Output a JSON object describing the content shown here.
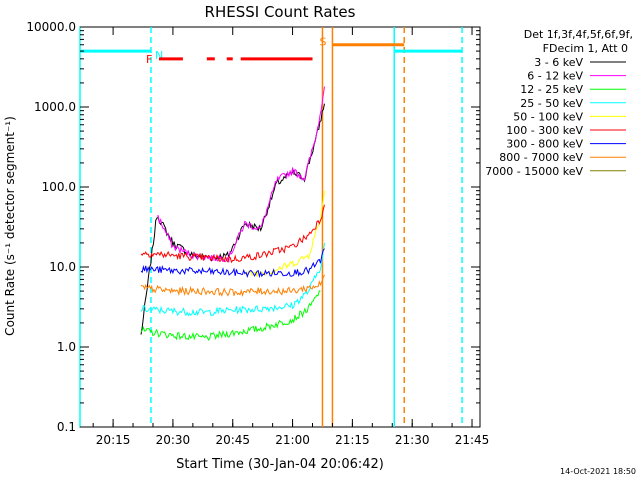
{
  "chart_data": {
    "type": "line",
    "title": "RHESSI Count Rates",
    "xlabel": "Start Time (30-Jan-04 20:06:42)",
    "ylabel": "Count Rate (s⁻¹ detector segment⁻¹)",
    "y_scale": "log",
    "ylim": [
      0.1,
      10000
    ],
    "xlim": [
      "20:06:42",
      "21:47:00"
    ],
    "x_ticks": [
      "20:15",
      "20:30",
      "20:45",
      "21:00",
      "21:15",
      "21:30",
      "21:45"
    ],
    "y_ticks": [
      "0.1",
      "1.0",
      "10.0",
      "100.0",
      "1000.0",
      "10000.0"
    ],
    "grid": false,
    "legend_position": "right",
    "legend_header": [
      "Det 1f,3f,4f,5f,6f,9f,",
      "FDecim 1, Att 0"
    ],
    "series": [
      {
        "name": "3 - 6 keV",
        "color": "#000000",
        "x": [
          "20:22",
          "20:26",
          "20:30",
          "20:35",
          "20:40",
          "20:44",
          "20:48",
          "20:52",
          "20:56",
          "21:00",
          "21:03",
          "21:06",
          "21:08"
        ],
        "y": [
          1.4,
          45,
          20,
          14,
          13,
          14,
          35,
          30,
          110,
          150,
          130,
          420,
          1100
        ]
      },
      {
        "name": "6 - 12 keV",
        "color": "#ff00ff",
        "x": [
          "20:26",
          "20:30",
          "20:35",
          "20:40",
          "20:44",
          "20:48",
          "20:52",
          "20:56",
          "21:00",
          "21:03",
          "21:06",
          "21:08"
        ],
        "y": [
          45,
          18,
          14,
          13,
          13,
          35,
          30,
          120,
          160,
          130,
          450,
          1800
        ]
      },
      {
        "name": "12 - 25 keV",
        "color": "#00ff00",
        "x": [
          "20:22",
          "20:30",
          "20:38",
          "20:45",
          "20:52",
          "21:00",
          "21:04",
          "21:07"
        ],
        "y": [
          1.6,
          1.4,
          1.3,
          1.5,
          1.7,
          2.2,
          3,
          5
        ]
      },
      {
        "name": "25 - 50 keV",
        "color": "#00ffff",
        "x": [
          "20:22",
          "20:30",
          "20:38",
          "20:45",
          "20:52",
          "21:00",
          "21:04",
          "21:07",
          "21:08"
        ],
        "y": [
          3,
          2.8,
          2.7,
          2.9,
          3,
          3.3,
          5,
          10,
          20
        ]
      },
      {
        "name": "50 - 100 keV",
        "color": "#ffff00",
        "x": [
          "20:48",
          "20:55",
          "21:00",
          "21:04",
          "21:07",
          "21:08"
        ],
        "y": [
          8,
          9,
          11,
          14,
          40,
          90
        ]
      },
      {
        "name": "100 - 300 keV",
        "color": "#ff0000",
        "x": [
          "20:22",
          "20:30",
          "20:38",
          "20:45",
          "20:52",
          "21:00",
          "21:04",
          "21:07",
          "21:08"
        ],
        "y": [
          15,
          14,
          13,
          12.5,
          14,
          18,
          25,
          40,
          60
        ]
      },
      {
        "name": "300 - 800 keV",
        "color": "#0000ff",
        "x": [
          "20:22",
          "20:30",
          "20:38",
          "20:45",
          "20:52",
          "21:00",
          "21:04",
          "21:07",
          "21:08"
        ],
        "y": [
          9.5,
          9,
          8.8,
          8.5,
          8.3,
          8.5,
          9,
          12,
          17
        ]
      },
      {
        "name": "800 - 7000 keV",
        "color": "#ff8000",
        "x": [
          "20:22",
          "20:30",
          "20:38",
          "20:45",
          "20:52",
          "21:00",
          "21:04",
          "21:07",
          "21:08"
        ],
        "y": [
          5.5,
          5,
          5,
          4.8,
          5,
          5,
          5.5,
          6,
          8
        ]
      },
      {
        "name": "7000 - 15000 keV",
        "color": "#808000",
        "x": [],
        "y": []
      }
    ],
    "annotations": [
      {
        "label": "N",
        "color": "#00ffff",
        "x_start": "20:06:42",
        "x_end": "20:24:30",
        "y": 5000
      },
      {
        "label": "",
        "color": "#00ffff",
        "x_start": "21:25:30",
        "x_end": "21:42:30",
        "y": 5000
      },
      {
        "label": "S",
        "color": "#ff8000",
        "x_start": "21:10:00",
        "x_end": "21:28:00",
        "y": 6000
      },
      {
        "label": "F",
        "color": "#ff0000",
        "segments": [
          [
            "20:26:30",
            "20:32:30"
          ],
          [
            "20:38:30",
            "20:40:30"
          ],
          [
            "20:43:30",
            "20:45:00"
          ],
          [
            "20:47:00",
            "21:05:00"
          ]
        ],
        "y": 4000
      }
    ],
    "vertical_markers": [
      {
        "x": "20:24:30",
        "color": "#00ffff",
        "style": "dashed"
      },
      {
        "x": "21:42:30",
        "color": "#00ffff",
        "style": "dashed"
      },
      {
        "x": "21:28:00",
        "color": "#ff8000",
        "style": "dashed"
      },
      {
        "x": "21:10:00",
        "color": "#ff8000",
        "style": "solid"
      },
      {
        "x": "21:07:30",
        "color": "#ff8000",
        "style": "solid"
      },
      {
        "x": "21:25:30",
        "color": "#00ffff",
        "style": "solid"
      },
      {
        "x": "20:06:42",
        "color": "#00ffff",
        "style": "solid"
      }
    ]
  },
  "footer_timestamp": "14-Oct-2021 18:50"
}
